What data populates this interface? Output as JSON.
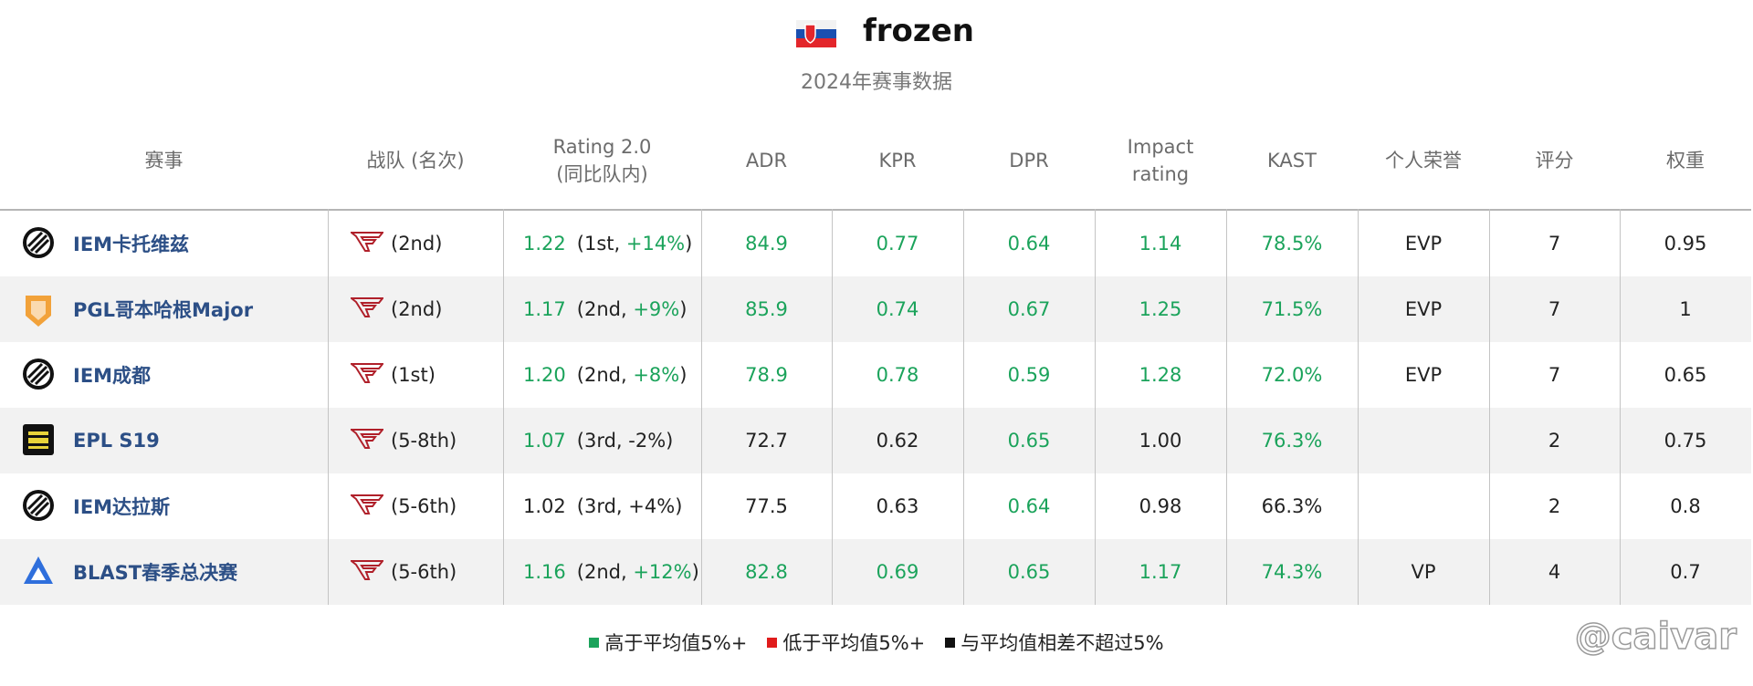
{
  "header": {
    "player": "frozen",
    "subtitle": "2024年赛事数据"
  },
  "table": {
    "columns": [
      [
        "赛事"
      ],
      [
        "战队 (名次)"
      ],
      [
        "Rating 2.0",
        "(同比队内)"
      ],
      [
        "ADR"
      ],
      [
        "KPR"
      ],
      [
        "DPR"
      ],
      [
        "Impact",
        "rating"
      ],
      [
        "KAST"
      ],
      [
        "个人荣誉"
      ],
      [
        "评分"
      ],
      [
        "权重"
      ]
    ],
    "rows": [
      {
        "event": "IEM卡托维兹",
        "team": "(2nd)",
        "rating": {
          "text": "1.22",
          "color": "#1ba35b",
          "detail": [
            {
              "text": "(1st, ",
              "color": "#222222"
            },
            {
              "text": "+14%",
              "color": "#1ba35b"
            },
            {
              "text": ")",
              "color": "#222222"
            }
          ]
        },
        "stats": [
          {
            "text": "84.9",
            "color": "#1ba35b"
          },
          {
            "text": "0.77",
            "color": "#1ba35b"
          },
          {
            "text": "0.64",
            "color": "#1ba35b"
          },
          {
            "text": "1.14",
            "color": "#1ba35b"
          },
          {
            "text": "78.5%",
            "color": "#1ba35b"
          }
        ],
        "honor": "EVP",
        "score": "7",
        "weight": "0.95"
      },
      {
        "event": "PGL哥本哈根Major",
        "team": "(2nd)",
        "rating": {
          "text": "1.17",
          "color": "#1ba35b",
          "detail": [
            {
              "text": "(2nd, ",
              "color": "#222222"
            },
            {
              "text": "+9%",
              "color": "#1ba35b"
            },
            {
              "text": ")",
              "color": "#222222"
            }
          ]
        },
        "stats": [
          {
            "text": "85.9",
            "color": "#1ba35b"
          },
          {
            "text": "0.74",
            "color": "#1ba35b"
          },
          {
            "text": "0.67",
            "color": "#1ba35b"
          },
          {
            "text": "1.25",
            "color": "#1ba35b"
          },
          {
            "text": "71.5%",
            "color": "#1ba35b"
          }
        ],
        "honor": "EVP",
        "score": "7",
        "weight": "1"
      },
      {
        "event": "IEM成都",
        "team": "(1st)",
        "rating": {
          "text": "1.20",
          "color": "#1ba35b",
          "detail": [
            {
              "text": "(2nd, ",
              "color": "#222222"
            },
            {
              "text": "+8%",
              "color": "#1ba35b"
            },
            {
              "text": ")",
              "color": "#222222"
            }
          ]
        },
        "stats": [
          {
            "text": "78.9",
            "color": "#1ba35b"
          },
          {
            "text": "0.78",
            "color": "#1ba35b"
          },
          {
            "text": "0.59",
            "color": "#1ba35b"
          },
          {
            "text": "1.28",
            "color": "#1ba35b"
          },
          {
            "text": "72.0%",
            "color": "#1ba35b"
          }
        ],
        "honor": "EVP",
        "score": "7",
        "weight": "0.65"
      },
      {
        "event": "EPL S19",
        "team": "(5-8th)",
        "rating": {
          "text": "1.07",
          "color": "#1ba35b",
          "detail": [
            {
              "text": "(3rd, ",
              "color": "#222222"
            },
            {
              "text": "-2%",
              "color": "#222222"
            },
            {
              "text": ")",
              "color": "#222222"
            }
          ]
        },
        "stats": [
          {
            "text": "72.7",
            "color": "#222222"
          },
          {
            "text": "0.62",
            "color": "#222222"
          },
          {
            "text": "0.65",
            "color": "#1ba35b"
          },
          {
            "text": "1.00",
            "color": "#222222"
          },
          {
            "text": "76.3%",
            "color": "#1ba35b"
          }
        ],
        "honor": "",
        "score": "2",
        "weight": "0.75"
      },
      {
        "event": "IEM达拉斯",
        "team": "(5-6th)",
        "rating": {
          "text": "1.02",
          "color": "#222222",
          "detail": [
            {
              "text": "(3rd, ",
              "color": "#222222"
            },
            {
              "text": "+4%",
              "color": "#222222"
            },
            {
              "text": ")",
              "color": "#222222"
            }
          ]
        },
        "stats": [
          {
            "text": "77.5",
            "color": "#222222"
          },
          {
            "text": "0.63",
            "color": "#222222"
          },
          {
            "text": "0.64",
            "color": "#1ba35b"
          },
          {
            "text": "0.98",
            "color": "#222222"
          },
          {
            "text": "66.3%",
            "color": "#222222"
          }
        ],
        "honor": "",
        "score": "2",
        "weight": "0.8"
      },
      {
        "event": "BLAST春季总决赛",
        "team": "(5-6th)",
        "rating": {
          "text": "1.16",
          "color": "#1ba35b",
          "detail": [
            {
              "text": "(2nd, ",
              "color": "#222222"
            },
            {
              "text": "+12%",
              "color": "#1ba35b"
            },
            {
              "text": ")",
              "color": "#222222"
            }
          ]
        },
        "stats": [
          {
            "text": "82.8",
            "color": "#1ba35b"
          },
          {
            "text": "0.69",
            "color": "#1ba35b"
          },
          {
            "text": "0.65",
            "color": "#1ba35b"
          },
          {
            "text": "1.17",
            "color": "#1ba35b"
          },
          {
            "text": "74.3%",
            "color": "#1ba35b"
          }
        ],
        "honor": "VP",
        "score": "4",
        "weight": "0.7"
      }
    ]
  },
  "legend": [
    {
      "label": "高于平均值5%+",
      "color": "#1ba35b"
    },
    {
      "label": "低于平均值5%+",
      "color": "#e01b1b"
    },
    {
      "label": "与平均值相差不超过5%",
      "color": "#111111"
    }
  ],
  "watermark": "@caivar"
}
